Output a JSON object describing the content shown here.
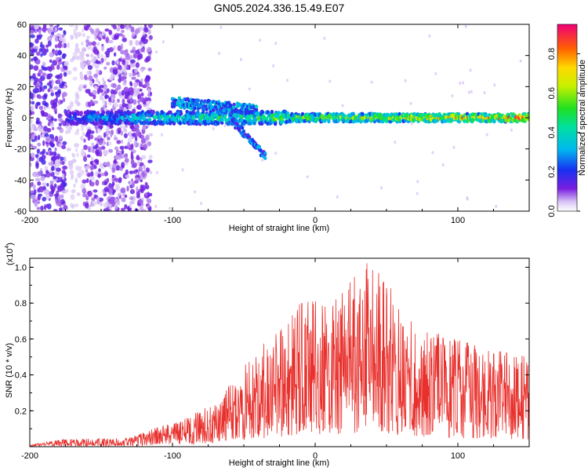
{
  "title": "GN05.2024.336.15.49.E07",
  "chart_data": [
    {
      "type": "heatmap",
      "xlabel": "Height of straight line (km)",
      "ylabel": "Frequency (Hz)",
      "xlim": [
        -200,
        150
      ],
      "ylim": [
        -60,
        60
      ],
      "xticks": [
        -200,
        -100,
        0,
        100
      ],
      "yticks": [
        -60,
        -40,
        -20,
        0,
        20,
        40,
        60
      ],
      "colorbar": {
        "label": "Normalized spectral amplitude",
        "range": [
          0,
          0.95
        ],
        "ticks": [
          0.0,
          0.2,
          0.4,
          0.6,
          0.8
        ],
        "tick_labels": [
          "0.0",
          "0.2",
          "0.4",
          "0.6",
          "0.8"
        ]
      },
      "features": [
        {
          "name": "broadband noise",
          "x_range": [
            -200,
            -115
          ],
          "y_range": [
            -60,
            60
          ],
          "amplitude": 0.1
        },
        {
          "name": "main band",
          "x_range": [
            -175,
            150
          ],
          "center_freq": 0,
          "amplitude_start": 0.25,
          "amplitude_end": 0.9
        },
        {
          "name": "upper branch",
          "x_range": [
            -100,
            -40
          ],
          "freq_start": 10,
          "freq_end": 5,
          "amplitude": 0.3
        },
        {
          "name": "descending branch",
          "x_range": [
            -60,
            -35
          ],
          "freq_start": 0,
          "freq_end": -25,
          "amplitude": 0.25
        }
      ]
    },
    {
      "type": "line",
      "xlabel": "Height of straight line (km)",
      "ylabel": "SNR (10 * v/v)",
      "scale_label_main": "(x10",
      "scale_label_exp": "4",
      "scale_label_end": ")",
      "xlim": [
        -200,
        150
      ],
      "ylim": [
        0,
        1.05
      ],
      "xticks": [
        -200,
        -100,
        0,
        100
      ],
      "yticks": [
        0.2,
        0.4,
        0.6,
        0.8,
        1.0
      ],
      "ytick_labels": [
        "0.2",
        "0.4",
        "0.6",
        "0.8",
        "1.0"
      ],
      "color": "#e8302c",
      "envelope": [
        {
          "x": -200,
          "y": 0.01
        },
        {
          "x": -180,
          "y": 0.04
        },
        {
          "x": -130,
          "y": 0.05
        },
        {
          "x": -110,
          "y": 0.11
        },
        {
          "x": -90,
          "y": 0.16
        },
        {
          "x": -70,
          "y": 0.25
        },
        {
          "x": -55,
          "y": 0.4
        },
        {
          "x": -40,
          "y": 0.55
        },
        {
          "x": -20,
          "y": 0.7
        },
        {
          "x": -8,
          "y": 0.85
        },
        {
          "x": 10,
          "y": 0.8
        },
        {
          "x": 25,
          "y": 0.93
        },
        {
          "x": 35,
          "y": 1.03
        },
        {
          "x": 48,
          "y": 0.95
        },
        {
          "x": 65,
          "y": 0.72
        },
        {
          "x": 90,
          "y": 0.62
        },
        {
          "x": 120,
          "y": 0.55
        },
        {
          "x": 150,
          "y": 0.5
        }
      ]
    }
  ]
}
